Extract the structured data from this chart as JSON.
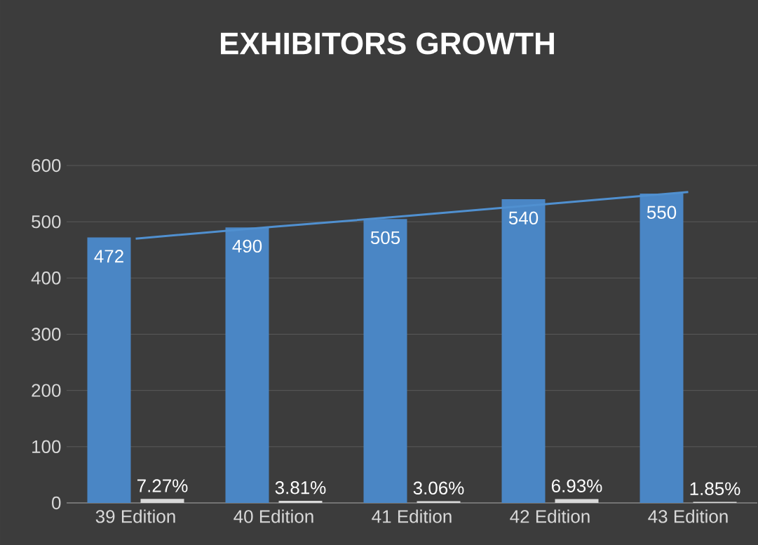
{
  "chart_data": {
    "type": "bar",
    "title": "EXHIBITORS GROWTH",
    "categories": [
      "39 Edition",
      "40 Edition",
      "41 Edition",
      "42 Edition",
      "43 Edition"
    ],
    "series": [
      {
        "color": "#4a86c5",
        "values": [
          472,
          490,
          505,
          540,
          550
        ],
        "value_labels": [
          "472",
          "490",
          "505",
          "540",
          "550"
        ]
      },
      {
        "color": "#d9d9d9",
        "values": [
          7.27,
          3.81,
          3.06,
          6.93,
          1.85
        ],
        "value_labels": [
          "7.27%",
          "3.81%",
          "3.06%",
          "6.93%",
          "1.85%"
        ]
      },
      {
        "type": "line",
        "color": "#5090d0",
        "values": [
          470,
          491,
          511,
          532,
          553
        ]
      }
    ],
    "ylim": [
      0,
      600
    ],
    "yticks": [
      0,
      100,
      200,
      300,
      400,
      500,
      600
    ],
    "grid": "y"
  }
}
